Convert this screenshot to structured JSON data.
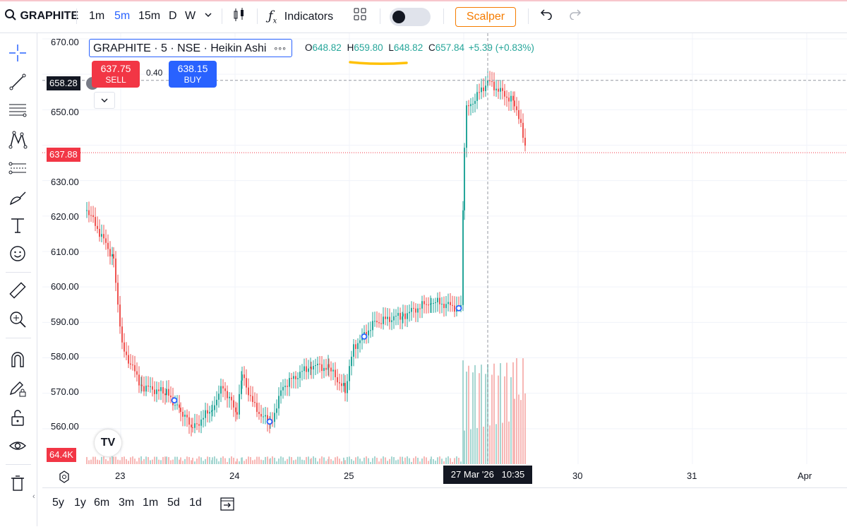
{
  "toolbar": {
    "symbol": "GRAPHITE",
    "intervals": [
      "1m",
      "5m",
      "15m",
      "D",
      "W"
    ],
    "active_interval": "5m",
    "indicators_label": "Indicators",
    "scalper_label": "Scalper"
  },
  "legend": {
    "title": "GRAPHITE · 5 · NSE · Heikin Ashi",
    "more": "∘∘∘",
    "o_label": "O",
    "o_value": "648.82",
    "h_label": "H",
    "h_value": "659.80",
    "l_label": "L",
    "l_value": "648.82",
    "c_label": "C",
    "c_value": "657.84",
    "change": "+5.39 (+0.83%)"
  },
  "trade": {
    "sell_price": "637.75",
    "sell_label": "SELL",
    "spread": "0.40",
    "buy_price": "638.15",
    "buy_label": "BUY"
  },
  "price_scale": [
    "670.00",
    "650.00",
    "630.00",
    "620.00",
    "610.00",
    "600.00",
    "590.00",
    "580.00",
    "570.00",
    "560.00"
  ],
  "price_tags": {
    "crosshair": "658.28",
    "last": "637.88",
    "volume": "64.4K"
  },
  "time_scale": [
    "23",
    "24",
    "25",
    "30",
    "31",
    "Apr"
  ],
  "crosshair_time": "27 Mar '26   10:35",
  "ranges": [
    "5y",
    "1y",
    "6m",
    "3m",
    "1m",
    "5d",
    "1d"
  ],
  "colors": {
    "up": "#26a69a",
    "down": "#ef5350",
    "accent": "#2962ff",
    "sell": "#f23645",
    "scalper": "#f57c00"
  },
  "chart_data": {
    "type": "candlestick",
    "ylim": [
      550,
      670
    ],
    "anchors": [
      {
        "day": "23",
        "price": 622
      },
      {
        "day": "23",
        "price": 608
      },
      {
        "day": "23",
        "price": 583
      },
      {
        "day": "23",
        "price": 572
      },
      {
        "day": "23",
        "price": 570
      },
      {
        "day": "23",
        "price": 565
      },
      {
        "day": "23",
        "price": 560
      },
      {
        "day": "24",
        "price": 566
      },
      {
        "day": "24",
        "price": 572
      },
      {
        "day": "24",
        "price": 564
      },
      {
        "day": "24",
        "price": 575
      },
      {
        "day": "24",
        "price": 566
      },
      {
        "day": "24",
        "price": 561
      },
      {
        "day": "24",
        "price": 572
      },
      {
        "day": "24",
        "price": 578
      },
      {
        "day": "24",
        "price": 577
      },
      {
        "day": "25",
        "price": 571
      },
      {
        "day": "25",
        "price": 583
      },
      {
        "day": "25",
        "price": 590
      },
      {
        "day": "25",
        "price": 592
      },
      {
        "day": "25",
        "price": 596
      },
      {
        "day": "27",
        "price": 594
      },
      {
        "day": "27",
        "price": 640
      },
      {
        "day": "27",
        "price": 650
      },
      {
        "day": "27",
        "price": 658
      },
      {
        "day": "27",
        "price": 652
      },
      {
        "day": "27",
        "price": 638
      }
    ],
    "markers": [
      {
        "day": "23",
        "price": 568
      },
      {
        "day": "24",
        "price": 562
      },
      {
        "day": "25",
        "price": 586
      },
      {
        "day": "27",
        "price": 594
      }
    ]
  }
}
